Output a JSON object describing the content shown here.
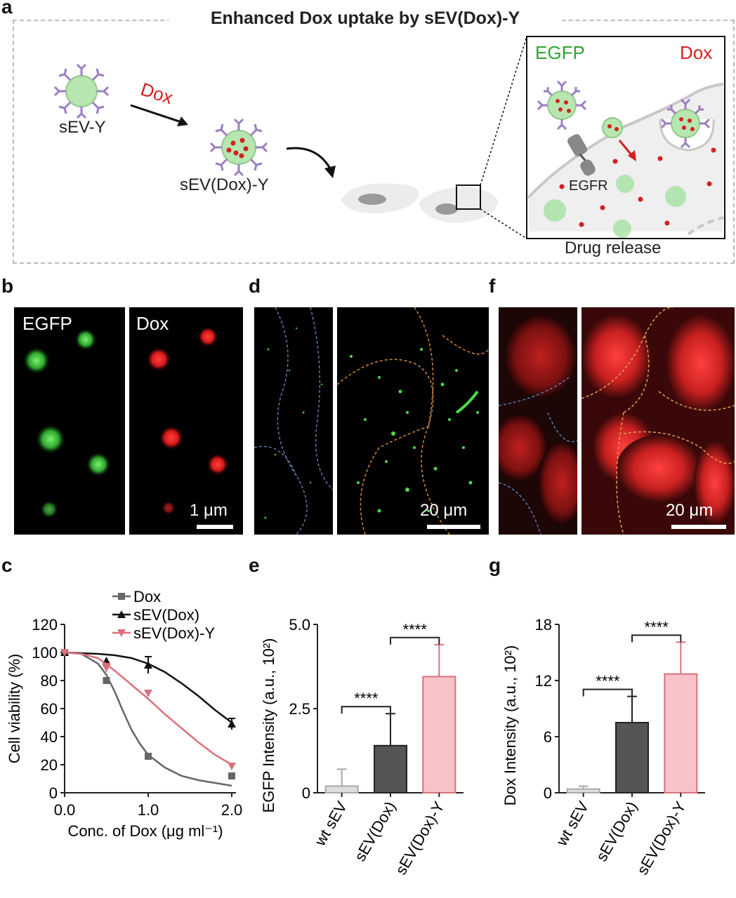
{
  "panels": {
    "a": "a",
    "b": "b",
    "c": "c",
    "d": "d",
    "e": "e",
    "f": "f",
    "g": "g"
  },
  "scheme": {
    "title": "Enhanced Dox uptake by sEV(Dox)-Y",
    "sev_y": "sEV-Y",
    "dox_arrow": "Dox",
    "sev_dox_y": "sEV(Dox)-Y",
    "inset_egfp": "EGFP",
    "inset_dox": "Dox",
    "egfr": "EGFR",
    "drug_release": "Drug release",
    "colors": {
      "green": "#2ea52e",
      "red": "#d42020",
      "purple": "#9b7fc0",
      "vesicle": "#b8e6b0"
    }
  },
  "panel_b": {
    "label_left": "EGFP",
    "label_right": "Dox",
    "scale": "1 μm"
  },
  "panel_d": {
    "scale": "20 μm"
  },
  "panel_f": {
    "scale": "20 μm"
  },
  "chart_data": [
    {
      "panel": "c",
      "type": "line",
      "xlabel": "Conc. of Dox (μg ml⁻¹)",
      "ylabel": "Cell viability (%)",
      "xlim": [
        0,
        2.0
      ],
      "ylim": [
        0,
        120
      ],
      "xticks": [
        "0.0",
        "1.0",
        "2.0"
      ],
      "yticks": [
        "0",
        "20",
        "40",
        "60",
        "80",
        "100",
        "120"
      ],
      "legend_position": "top-right",
      "series": [
        {
          "name": "Dox",
          "color": "#666666",
          "marker": "square",
          "x": [
            0,
            0.5,
            1.0,
            2.0
          ],
          "y": [
            100,
            80,
            26,
            12
          ],
          "fit": [
            [
              0,
              100
            ],
            [
              0.2,
              99
            ],
            [
              0.4,
              92
            ],
            [
              0.5,
              84
            ],
            [
              0.6,
              72
            ],
            [
              0.7,
              58
            ],
            [
              0.8,
              45
            ],
            [
              0.9,
              35
            ],
            [
              1.0,
              27
            ],
            [
              1.2,
              18
            ],
            [
              1.4,
              12
            ],
            [
              1.6,
              9
            ],
            [
              1.8,
              7
            ],
            [
              2.0,
              5
            ]
          ]
        },
        {
          "name": "sEV(Dox)",
          "color": "#111111",
          "marker": "triangle",
          "x": [
            0,
            0.5,
            1.0,
            2.0
          ],
          "y": [
            100,
            94,
            91,
            49
          ],
          "err": [
            0,
            0,
            6,
            4
          ],
          "fit": [
            [
              0,
              100
            ],
            [
              0.4,
              99
            ],
            [
              0.6,
              98
            ],
            [
              0.8,
              96
            ],
            [
              1.0,
              92
            ],
            [
              1.2,
              86
            ],
            [
              1.4,
              78
            ],
            [
              1.6,
              69
            ],
            [
              1.8,
              59
            ],
            [
              2.0,
              50
            ]
          ]
        },
        {
          "name": "sEV(Dox)-Y",
          "color": "#d9727c",
          "marker": "inverted-triangle",
          "x": [
            0,
            0.5,
            1.0,
            2.0
          ],
          "y": [
            100,
            89,
            71,
            19
          ],
          "err": [
            0,
            3,
            0,
            0
          ],
          "fit": [
            [
              0,
              100
            ],
            [
              0.2,
              99
            ],
            [
              0.4,
              96
            ],
            [
              0.6,
              87
            ],
            [
              0.8,
              77
            ],
            [
              1.0,
              67
            ],
            [
              1.2,
              56
            ],
            [
              1.4,
              46
            ],
            [
              1.6,
              36
            ],
            [
              1.8,
              27
            ],
            [
              2.0,
              20
            ]
          ]
        }
      ]
    },
    {
      "panel": "e",
      "type": "bar",
      "ylabel": "EGFP Intensity (a.u., 10²)",
      "ylim": [
        0,
        5.0
      ],
      "yticks": [
        "0",
        "2.5",
        "5.0"
      ],
      "categories": [
        "wt sEV",
        "sEV(Dox)",
        "sEV(Dox)-Y"
      ],
      "values": [
        0.2,
        1.4,
        3.45
      ],
      "errors": [
        0.5,
        0.95,
        0.95
      ],
      "colors": [
        "#dddddd",
        "#555555",
        "#f7c2c8"
      ],
      "edge_colors": [
        "#aaaaaa",
        "#222222",
        "#d9727c"
      ],
      "significance": [
        {
          "from": 0,
          "to": 1,
          "label": "****"
        },
        {
          "from": 1,
          "to": 2,
          "label": "****"
        }
      ]
    },
    {
      "panel": "g",
      "type": "bar",
      "ylabel": "Dox Intensity (a.u., 10²)",
      "ylim": [
        0,
        18
      ],
      "yticks": [
        "0",
        "6",
        "12",
        "18"
      ],
      "categories": [
        "wt sEV",
        "sEV(Dox)",
        "sEV(Dox)-Y"
      ],
      "values": [
        0.4,
        7.5,
        12.7
      ],
      "errors": [
        0.3,
        2.8,
        3.4
      ],
      "colors": [
        "#dddddd",
        "#555555",
        "#f7c2c8"
      ],
      "edge_colors": [
        "#aaaaaa",
        "#222222",
        "#d9727c"
      ],
      "significance": [
        {
          "from": 0,
          "to": 1,
          "label": "****"
        },
        {
          "from": 1,
          "to": 2,
          "label": "****"
        }
      ]
    }
  ]
}
